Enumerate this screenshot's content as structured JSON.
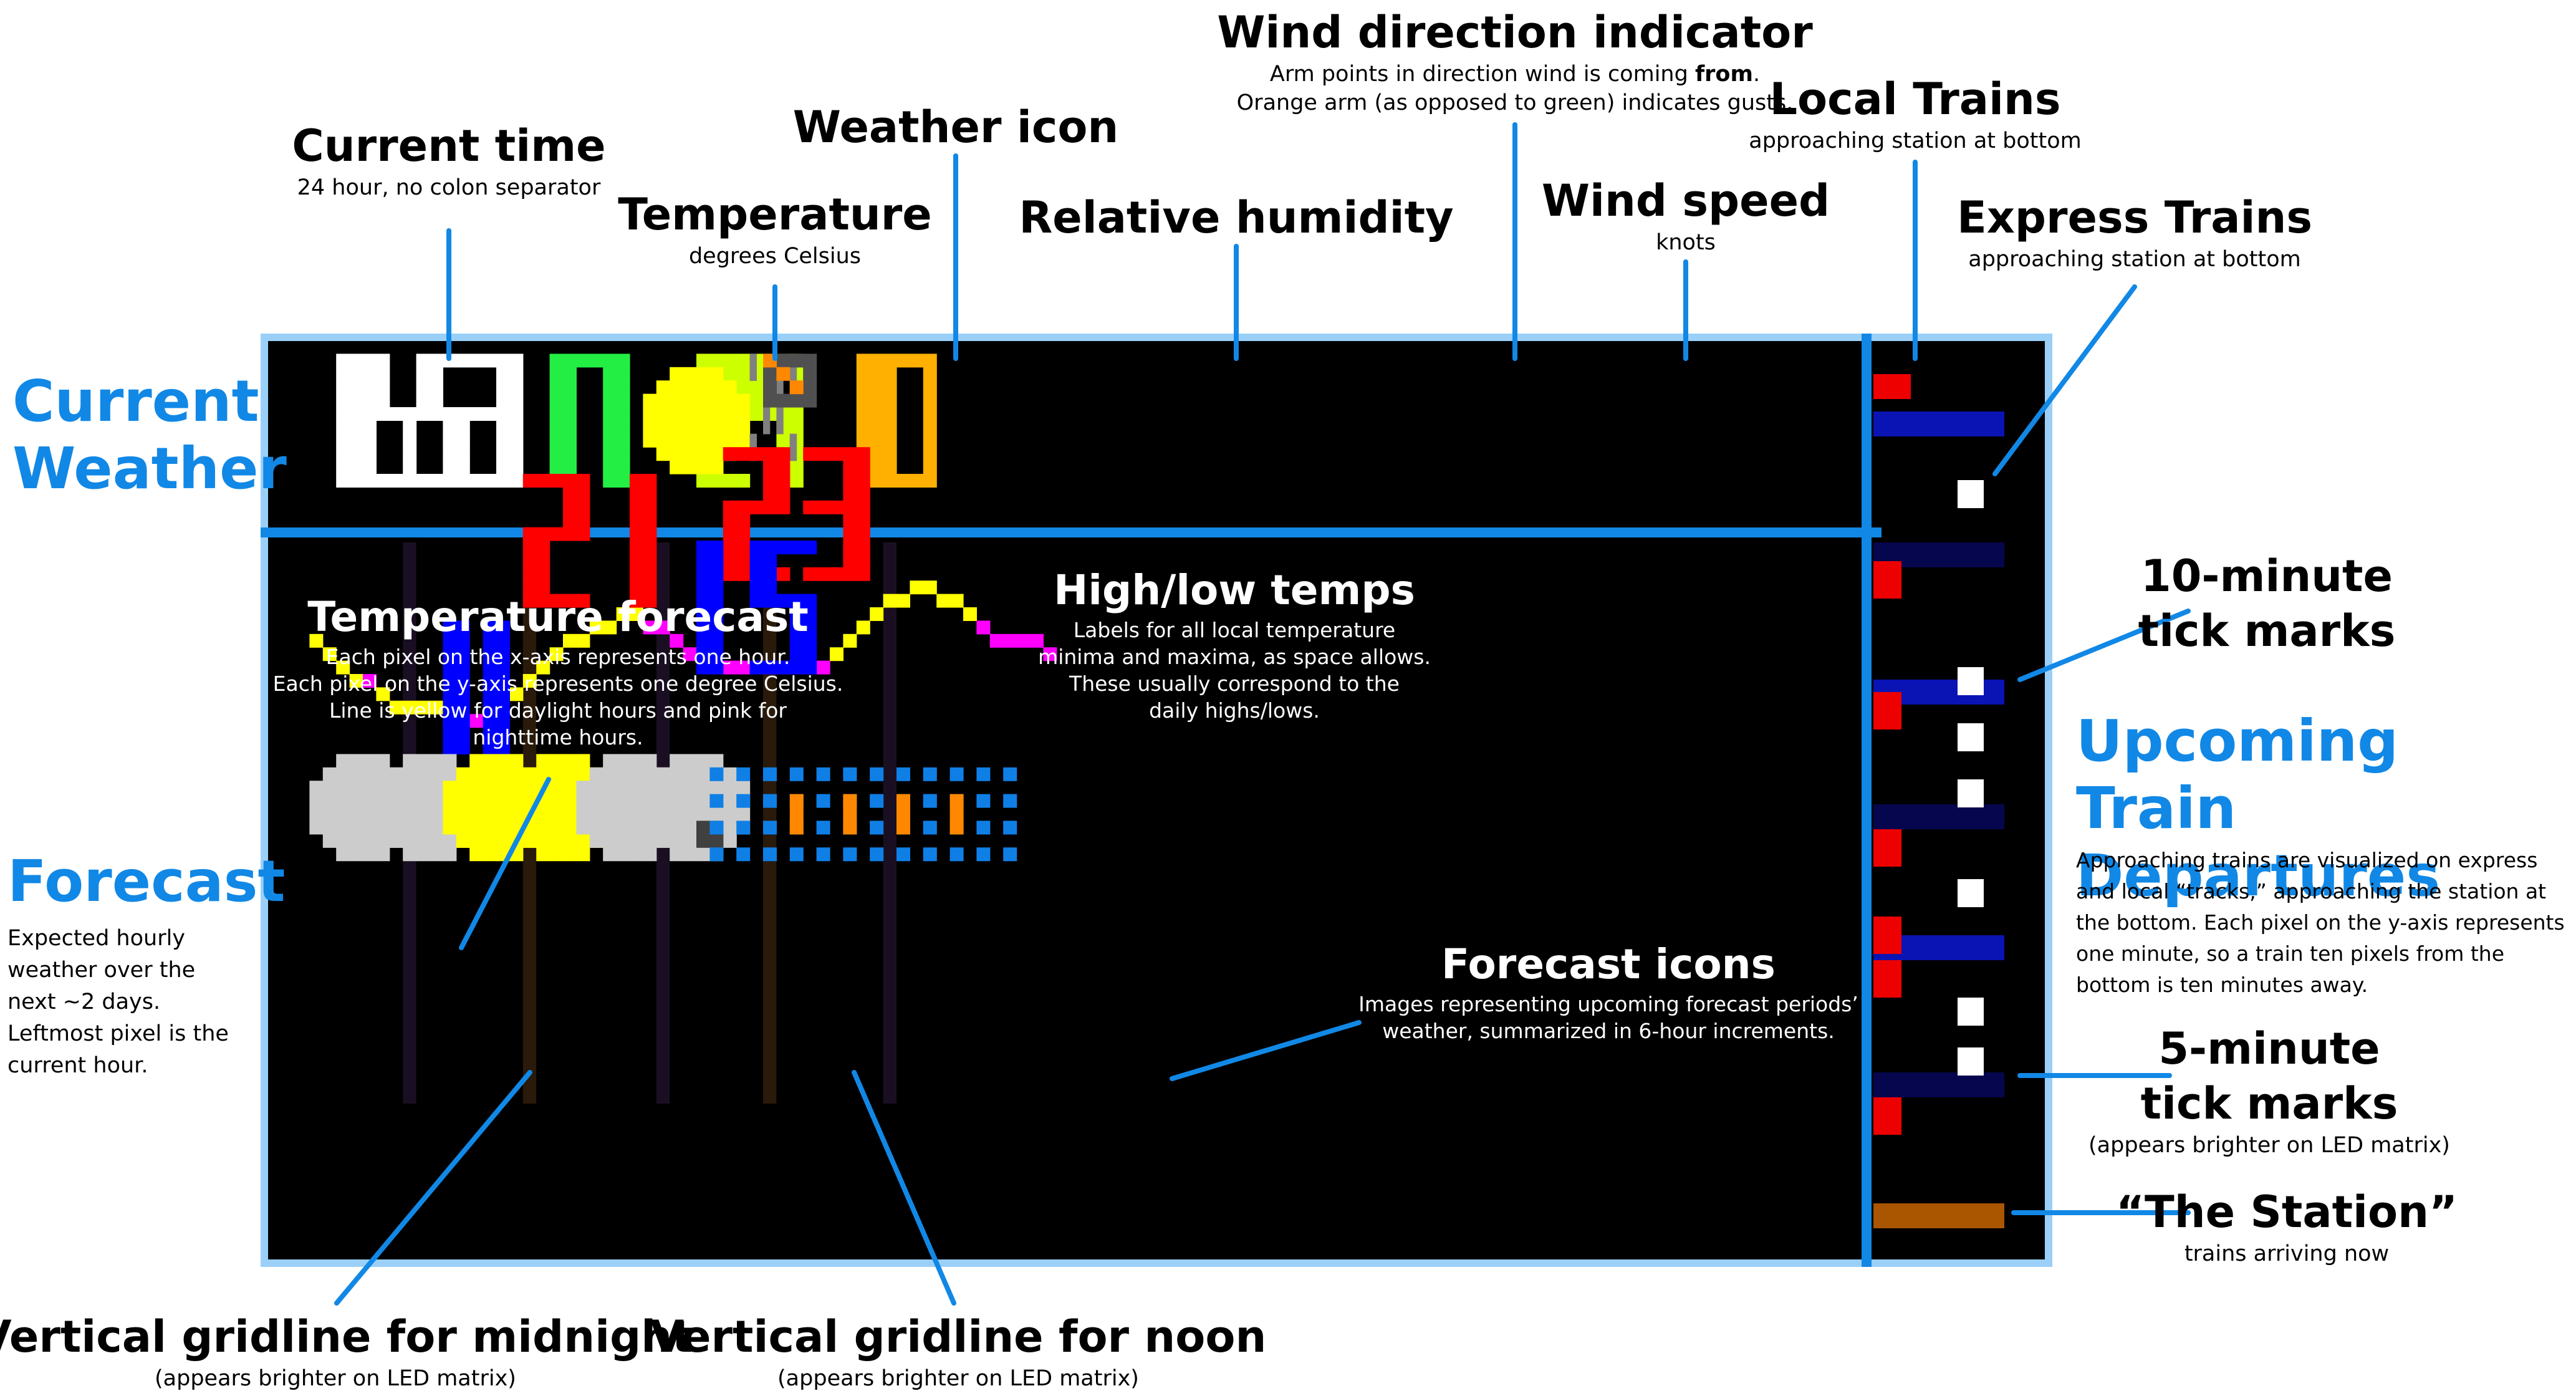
{
  "colors": {
    "accent": "#1188e6",
    "panel": "#000000",
    "time": "#ffffff",
    "temperature": "#22ee44",
    "sun": "#ffff00",
    "humidity": "#ccff00",
    "wind_speed": "#ffb000",
    "gust_arm": "#ff8800",
    "label_high_low": "#ff0000",
    "label_low": "#0000ff",
    "local_train": "#ee0000",
    "express_train": "#ffffff",
    "station": "#aa5500",
    "tick_10": "#0a14b4",
    "tick_5": "#06064e",
    "forecast_day": "#ffff00",
    "forecast_night": "#ff00ff",
    "cloud": "#cccccc",
    "rain": "#0f7fe6"
  },
  "display": {
    "time": "1653",
    "temperature": "17",
    "humidity": "29",
    "wind_speed": "10",
    "high_1": "21",
    "high_2": "23",
    "low_1": "11",
    "low_2": "15",
    "weather_icon": "sun-icon",
    "humidity_icon": "percent-icon",
    "wind_icon": "wind-direction-icon",
    "forecast_icons": [
      "cloud-icon",
      "cloud-icon",
      "sun-icon",
      "sun-icon",
      "cloud-icon",
      "cloud-night-icon",
      "rain-icon",
      "rain-icon",
      "rain-icon",
      "rain-icon"
    ]
  },
  "sections": {
    "current_weather": "Current Weather",
    "forecast": "Forecast",
    "forecast_desc": "Expected hourly weather over the next ~2 days. Leftmost pixel is the current hour.",
    "upcoming_trains": "Upcoming Train Departures",
    "upcoming_trains_desc": "Approaching trains are visualized on express and local “tracks,” approaching the station at the bottom. Each pixel on the y-axis represents one minute, so a train ten pixels from the bottom is ten minutes away."
  },
  "labels": {
    "current_time": {
      "title": "Current time",
      "sub": "24 hour, no colon separator"
    },
    "temperature": {
      "title": "Temperature",
      "sub": "degrees Celsius"
    },
    "weather_icon": {
      "title": "Weather icon"
    },
    "relative_humidity": {
      "title": "Relative humidity"
    },
    "wind_direction": {
      "title": "Wind direction indicator",
      "sub1_pre": "Arm points in direction wind is coming ",
      "sub1_bold": "from",
      "sub1_post": ".",
      "sub2": "Orange arm (as opposed to green) indicates gusts."
    },
    "wind_speed": {
      "title": "Wind speed",
      "sub": "knots"
    },
    "local_trains": {
      "title": "Local Trains",
      "sub": "approaching station at bottom"
    },
    "express_trains": {
      "title": "Express Trains",
      "sub": "approaching station at bottom"
    },
    "tick_10": {
      "title1": "10-minute",
      "title2": "tick marks"
    },
    "tick_5": {
      "title1": "5-minute",
      "title2": "tick marks",
      "sub": "(appears brighter on LED matrix)"
    },
    "station": {
      "title": "“The Station”",
      "sub": "trains arriving now"
    },
    "temp_forecast": {
      "title": "Temperature forecast",
      "lines": [
        "Each pixel on the x-axis represents one hour.",
        "Each pixel on the y-axis represents one degree Celsius.",
        "Line is yellow for daylight hours and pink for",
        "nighttime hours."
      ]
    },
    "high_low": {
      "title": "High/low temps",
      "lines": [
        "Labels for all local temperature",
        "minima and maxima, as space allows.",
        "These usually correspond to the",
        "daily highs/lows."
      ]
    },
    "forecast_icons": {
      "title": "Forecast icons",
      "lines": [
        "Images representing upcoming forecast periods’",
        "weather, summarized in 6-hour increments."
      ]
    },
    "midnight": {
      "title": "Vertical gridline for midnight",
      "sub": "(appears brighter on LED matrix)"
    },
    "noon": {
      "title": "Vertical gridline for noon",
      "sub": "(appears brighter on LED matrix)"
    }
  }
}
